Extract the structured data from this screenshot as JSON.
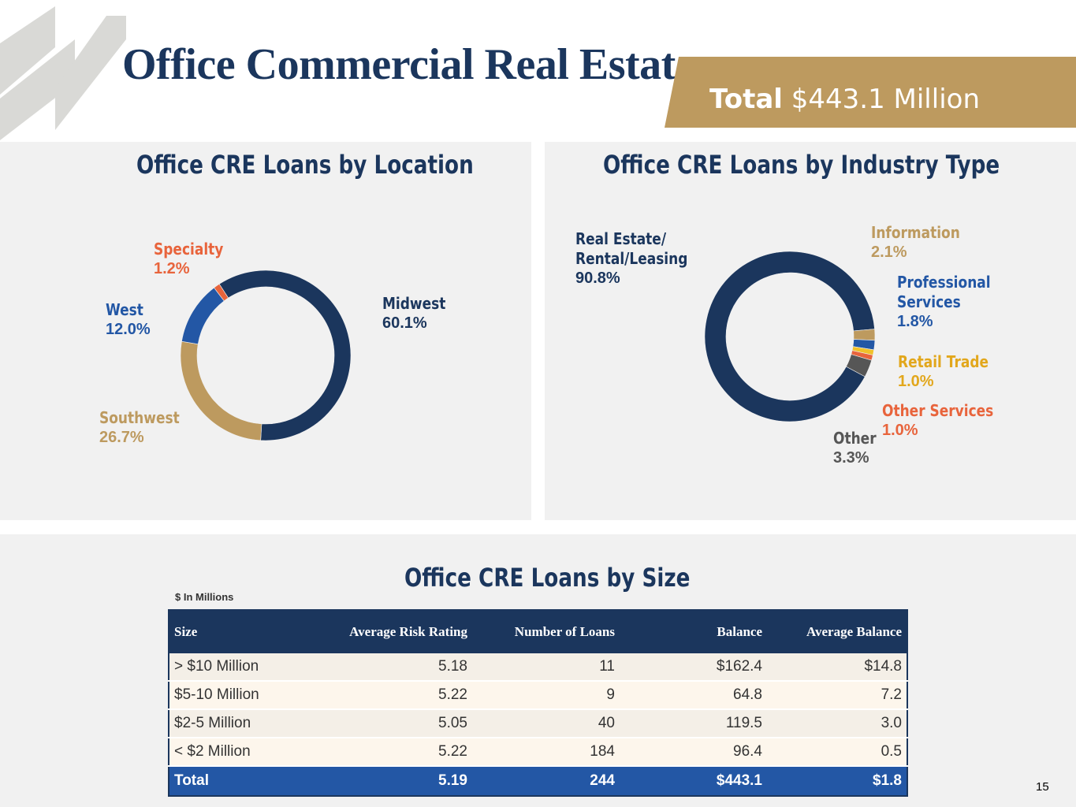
{
  "header": {
    "title": "Office Commercial Real Estate",
    "total_label": "Total",
    "total_value": "$443.1 Million"
  },
  "page_number": "15",
  "colors": {
    "navy": "#1b365d",
    "gold": "#bd9a5f",
    "blue": "#2357a5",
    "orange": "#e8643c",
    "yellow": "#e2a71c",
    "gray": "#565656"
  },
  "chart_data": [
    {
      "type": "pie",
      "title": "Office CRE Loans by Location",
      "donut": true,
      "slices": [
        {
          "label": "Midwest",
          "value": 60.1,
          "display": "60.1%",
          "color": "#1b365d"
        },
        {
          "label": "Southwest",
          "value": 26.7,
          "display": "26.7%",
          "color": "#bd9a5f"
        },
        {
          "label": "West",
          "value": 12.0,
          "display": "12.0%",
          "color": "#2357a5"
        },
        {
          "label": "Specialty",
          "value": 1.2,
          "display": "1.2%",
          "color": "#e8643c"
        }
      ]
    },
    {
      "type": "pie",
      "title": "Office CRE Loans by Industry Type",
      "donut": true,
      "slices": [
        {
          "label": "Real Estate/ Rental/Leasing",
          "label_lines": [
            "Real Estate/",
            "Rental/Leasing"
          ],
          "value": 90.8,
          "display": "90.8%",
          "color": "#1b365d"
        },
        {
          "label": "Information",
          "label_lines": [
            "Information"
          ],
          "value": 2.1,
          "display": "2.1%",
          "color": "#bd9a5f"
        },
        {
          "label": "Professional Services",
          "label_lines": [
            "Professional",
            "Services"
          ],
          "value": 1.8,
          "display": "1.8%",
          "color": "#2357a5"
        },
        {
          "label": "Retail Trade",
          "label_lines": [
            "Retail Trade"
          ],
          "value": 1.0,
          "display": "1.0%",
          "color": "#f0c12a"
        },
        {
          "label": "Other Services",
          "label_lines": [
            "Other Services"
          ],
          "value": 1.0,
          "display": "1.0%",
          "color": "#e8643c"
        },
        {
          "label": "Other",
          "label_lines": [
            "Other"
          ],
          "value": 3.3,
          "display": "3.3%",
          "color": "#565656"
        }
      ]
    },
    {
      "type": "table",
      "title": "Office CRE Loans by Size",
      "units_note": "$ In Millions",
      "columns": [
        "Size",
        "Average Risk Rating",
        "Number of Loans",
        "Balance",
        "Average Balance"
      ],
      "rows": [
        [
          "> $10 Million",
          "5.18",
          "11",
          "$162.4",
          "$14.8"
        ],
        [
          "$5-10 Million",
          "5.22",
          "9",
          "64.8",
          "7.2"
        ],
        [
          "$2-5 Million",
          "5.05",
          "40",
          "119.5",
          "3.0"
        ],
        [
          "< $2 Million",
          "5.22",
          "184",
          "96.4",
          "0.5"
        ]
      ],
      "total": [
        "Total",
        "5.19",
        "244",
        "$443.1",
        "$1.8"
      ]
    }
  ]
}
